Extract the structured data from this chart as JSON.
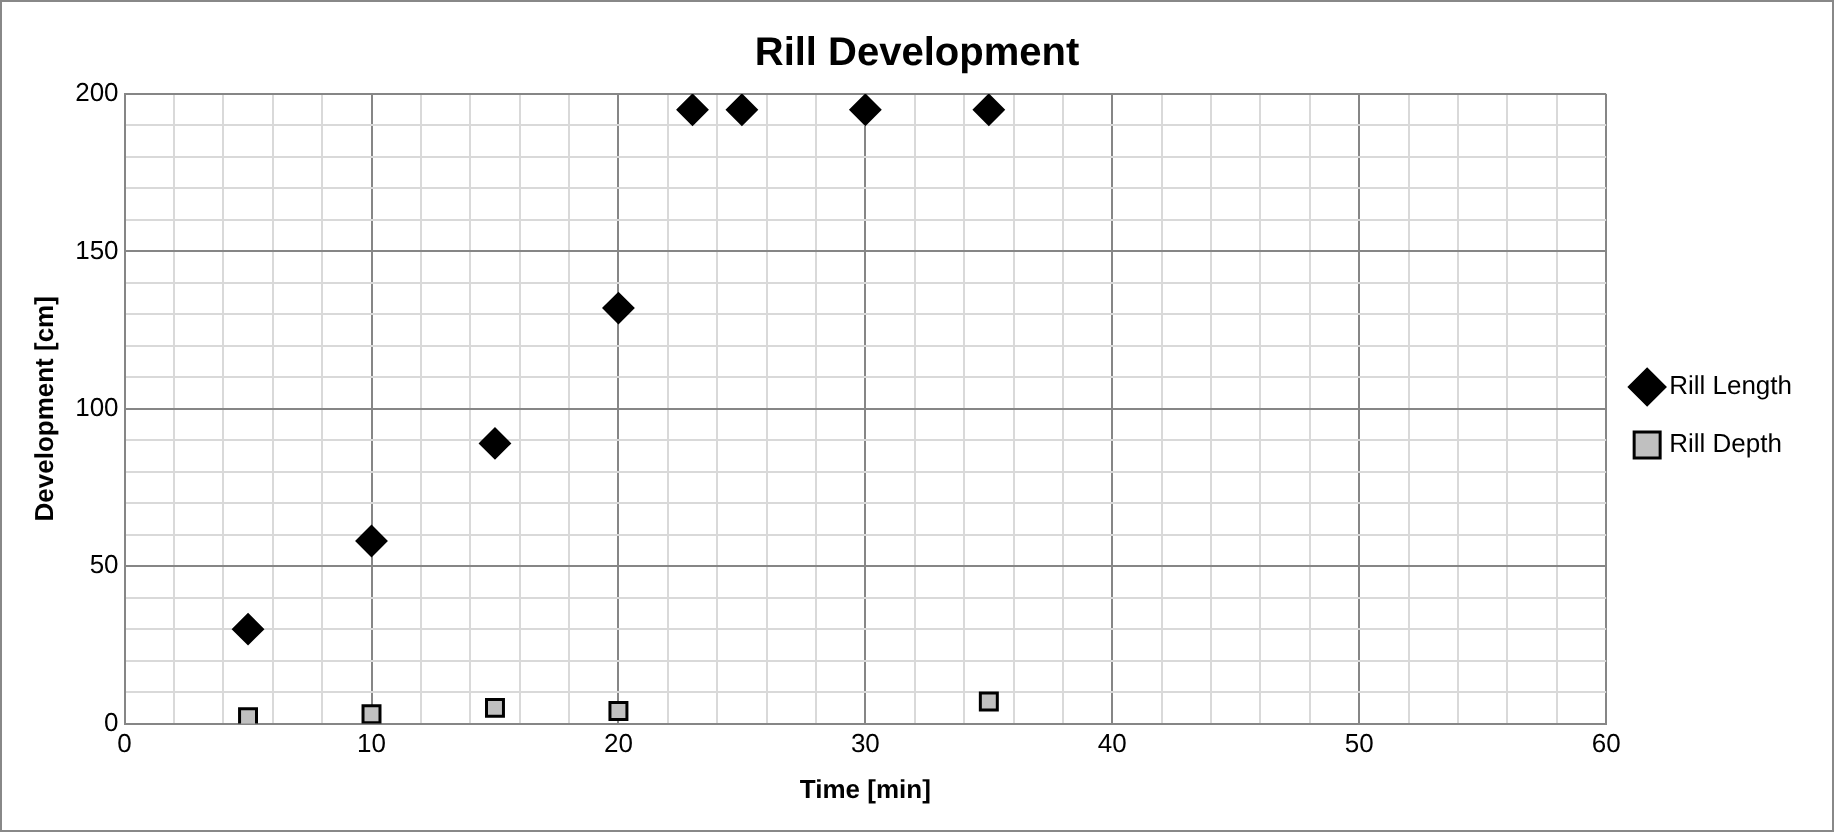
{
  "chart_data": {
    "type": "scatter",
    "title": "Rill Development",
    "xlabel": "Time [min]",
    "ylabel": "Development [cm]",
    "xlim": [
      0,
      60
    ],
    "ylim": [
      0,
      200
    ],
    "xticks": [
      0,
      {
        "value": 2,
        "label": null
      },
      {
        "value": 4,
        "label": null
      },
      {
        "value": 6,
        "label": null
      },
      {
        "value": 8,
        "label": null
      },
      10,
      {
        "value": 12,
        "label": null
      },
      {
        "value": 14,
        "label": null
      },
      {
        "value": 16,
        "label": null
      },
      {
        "value": 18,
        "label": null
      },
      20,
      {
        "value": 22,
        "label": null
      },
      {
        "value": 24,
        "label": null
      },
      {
        "value": 26,
        "label": null
      },
      {
        "value": 28,
        "label": null
      },
      30,
      {
        "value": 32,
        "label": null
      },
      {
        "value": 34,
        "label": null
      },
      {
        "value": 36,
        "label": null
      },
      {
        "value": 38,
        "label": null
      },
      40,
      {
        "value": 42,
        "label": null
      },
      {
        "value": 44,
        "label": null
      },
      {
        "value": 46,
        "label": null
      },
      {
        "value": 48,
        "label": null
      },
      50,
      {
        "value": 52,
        "label": null
      },
      {
        "value": 54,
        "label": null
      },
      {
        "value": 56,
        "label": null
      },
      {
        "value": 58,
        "label": null
      },
      60
    ],
    "yticks": [
      0,
      {
        "value": 10,
        "label": null
      },
      {
        "value": 20,
        "label": null
      },
      {
        "value": 30,
        "label": null
      },
      {
        "value": 40,
        "label": null
      },
      50,
      {
        "value": 60,
        "label": null
      },
      {
        "value": 70,
        "label": null
      },
      {
        "value": 80,
        "label": null
      },
      {
        "value": 90,
        "label": null
      },
      100,
      {
        "value": 110,
        "label": null
      },
      {
        "value": 120,
        "label": null
      },
      {
        "value": 130,
        "label": null
      },
      {
        "value": 140,
        "label": null
      },
      150,
      {
        "value": 160,
        "label": null
      },
      {
        "value": 170,
        "label": null
      },
      {
        "value": 180,
        "label": null
      },
      {
        "value": 190,
        "label": null
      },
      200
    ],
    "grid": true,
    "legend": "right",
    "series": [
      {
        "name": "Rill Length",
        "color": "#000000",
        "marker": "diamond",
        "x": [
          5,
          10,
          15,
          20,
          23,
          25,
          30,
          35
        ],
        "values": [
          30,
          58,
          89,
          132,
          195,
          195,
          195,
          195
        ]
      },
      {
        "name": "Rill Depth",
        "color": "#c0c0c0",
        "marker": "square",
        "x": [
          5,
          10,
          15,
          20,
          35
        ],
        "values": [
          2,
          3,
          5,
          4,
          7
        ]
      }
    ]
  }
}
